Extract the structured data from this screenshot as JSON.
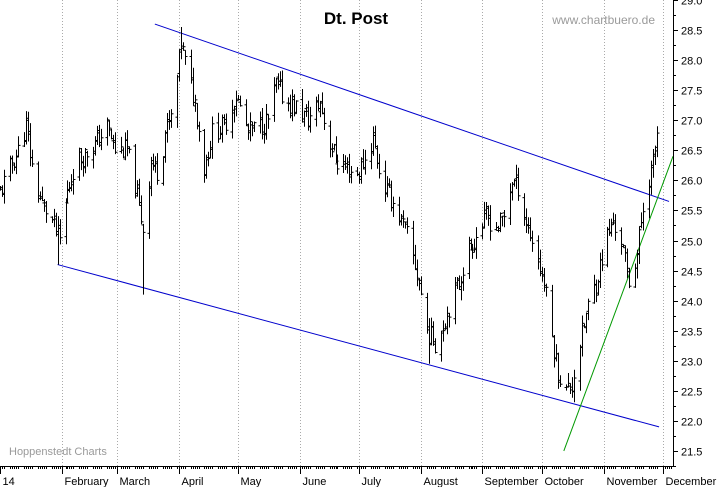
{
  "chart_data": {
    "type": "ohlc",
    "title": "Dt. Post",
    "watermark": "www.chartbuero.de",
    "source": "Hoppenstedt Charts",
    "xlabel": "",
    "ylabel": "",
    "y_axis": {
      "min": 21.25,
      "max": 29.0,
      "ticks": [
        21.5,
        22.0,
        22.5,
        23.0,
        23.5,
        24.0,
        24.5,
        25.0,
        25.5,
        26.0,
        26.5,
        27.0,
        27.5,
        28.0,
        28.5,
        29.0
      ],
      "tick_labels": [
        "21.5",
        "22.0",
        "22.5",
        "23.0",
        "23.5",
        "24.0",
        "24.5",
        "25.0",
        "25.5",
        "26.0",
        "26.5",
        "27.0",
        "27.5",
        "28.0",
        "28.5",
        "29.0"
      ],
      "side": "right"
    },
    "x_axis": {
      "start": "2014-01-01",
      "end": "2014-12-06",
      "month_starts": [
        "2014-02-01",
        "2014-03-01",
        "2014-04-01",
        "2014-05-01",
        "2014-06-01",
        "2014-07-01",
        "2014-08-01",
        "2014-09-01",
        "2014-10-01",
        "2014-11-01",
        "2014-12-01"
      ],
      "labels": [
        {
          "text": "14",
          "date": "2014-01-01"
        },
        {
          "text": "February",
          "date": "2014-02-01"
        },
        {
          "text": "March",
          "date": "2014-03-01"
        },
        {
          "text": "April",
          "date": "2014-04-01"
        },
        {
          "text": "May",
          "date": "2014-05-01"
        },
        {
          "text": "June",
          "date": "2014-06-01"
        },
        {
          "text": "July",
          "date": "2014-07-01"
        },
        {
          "text": "August",
          "date": "2014-08-01"
        },
        {
          "text": "September",
          "date": "2014-09-01"
        },
        {
          "text": "October",
          "date": "2014-10-01"
        },
        {
          "text": "November",
          "date": "2014-11-01"
        },
        {
          "text": "December",
          "date": "2014-12-01"
        }
      ]
    },
    "grid": "vertical dotted at month starts",
    "colors": {
      "price": "#000000",
      "channel": "#0000cc",
      "trendline": "#009900",
      "grid": "#aaaaaa",
      "axis": "#000000"
    },
    "price_anchors": [
      [
        "2014-01-01",
        25.8
      ],
      [
        "2014-01-06",
        26.2
      ],
      [
        "2014-01-10",
        26.5
      ],
      [
        "2014-01-14",
        26.9
      ],
      [
        "2014-01-18",
        26.0
      ],
      [
        "2014-01-22",
        25.6
      ],
      [
        "2014-01-26",
        25.4
      ],
      [
        "2014-01-31",
        25.0
      ],
      [
        "2014-02-04",
        25.8
      ],
      [
        "2014-02-08",
        26.3
      ],
      [
        "2014-02-12",
        26.4
      ],
      [
        "2014-02-18",
        26.6
      ],
      [
        "2014-02-24",
        26.9
      ],
      [
        "2014-02-28",
        26.5
      ],
      [
        "2014-03-06",
        26.5
      ],
      [
        "2014-03-10",
        25.9
      ],
      [
        "2014-03-14",
        25.2
      ],
      [
        "2014-03-18",
        26.3
      ],
      [
        "2014-03-22",
        26.1
      ],
      [
        "2014-03-25",
        26.8
      ],
      [
        "2014-03-29",
        27.1
      ],
      [
        "2014-04-02",
        28.3
      ],
      [
        "2014-04-05",
        27.8
      ],
      [
        "2014-04-09",
        27.3
      ],
      [
        "2014-04-14",
        26.2
      ],
      [
        "2014-04-18",
        26.8
      ],
      [
        "2014-04-24",
        26.9
      ],
      [
        "2014-04-30",
        27.4
      ],
      [
        "2014-05-06",
        26.8
      ],
      [
        "2014-05-12",
        26.9
      ],
      [
        "2014-05-16",
        27.0
      ],
      [
        "2014-05-20",
        27.6
      ],
      [
        "2014-05-25",
        27.3
      ],
      [
        "2014-05-31",
        27.2
      ],
      [
        "2014-06-05",
        27.0
      ],
      [
        "2014-06-11",
        27.3
      ],
      [
        "2014-06-15",
        26.7
      ],
      [
        "2014-06-20",
        26.3
      ],
      [
        "2014-06-25",
        26.2
      ],
      [
        "2014-06-30",
        26.1
      ],
      [
        "2014-07-05",
        26.4
      ],
      [
        "2014-07-08",
        26.7
      ],
      [
        "2014-07-12",
        26.0
      ],
      [
        "2014-07-17",
        25.7
      ],
      [
        "2014-07-21",
        25.4
      ],
      [
        "2014-07-26",
        25.0
      ],
      [
        "2014-07-31",
        24.3
      ],
      [
        "2014-08-04",
        23.5
      ],
      [
        "2014-08-08",
        23.3
      ],
      [
        "2014-08-12",
        23.6
      ],
      [
        "2014-08-16",
        24.0
      ],
      [
        "2014-08-20",
        24.3
      ],
      [
        "2014-08-24",
        24.8
      ],
      [
        "2014-08-28",
        25.0
      ],
      [
        "2014-09-03",
        25.4
      ],
      [
        "2014-09-08",
        25.2
      ],
      [
        "2014-09-12",
        25.4
      ],
      [
        "2014-09-16",
        26.0
      ],
      [
        "2014-09-19",
        25.9
      ],
      [
        "2014-09-23",
        25.3
      ],
      [
        "2014-09-28",
        24.8
      ],
      [
        "2014-10-02",
        24.3
      ],
      [
        "2014-10-06",
        23.4
      ],
      [
        "2014-10-09",
        22.8
      ],
      [
        "2014-10-13",
        22.5
      ],
      [
        "2014-10-16",
        22.6
      ],
      [
        "2014-10-20",
        23.3
      ],
      [
        "2014-10-24",
        23.9
      ],
      [
        "2014-10-28",
        24.3
      ],
      [
        "2014-11-02",
        25.0
      ],
      [
        "2014-11-06",
        25.3
      ],
      [
        "2014-11-10",
        25.0
      ],
      [
        "2014-11-14",
        24.3
      ],
      [
        "2014-11-18",
        24.8
      ],
      [
        "2014-11-22",
        25.8
      ],
      [
        "2014-11-26",
        26.3
      ],
      [
        "2014-11-28",
        26.8
      ]
    ],
    "extremes": [
      {
        "date": "2014-01-30",
        "low": 24.6
      },
      {
        "date": "2014-03-14",
        "low": 24.1
      },
      {
        "date": "2014-04-02",
        "high": 28.55
      },
      {
        "date": "2014-05-24",
        "high": 28.0
      },
      {
        "date": "2014-08-05",
        "low": 22.95
      },
      {
        "date": "2014-09-20",
        "high": 26.6
      },
      {
        "date": "2014-10-12",
        "low": 21.6
      },
      {
        "date": "2014-11-28",
        "high": 26.9
      }
    ],
    "channel_upper": [
      [
        "2014-03-20",
        28.6
      ],
      [
        "2014-12-04",
        25.65
      ]
    ],
    "channel_lower": [
      [
        "2014-01-30",
        24.6
      ],
      [
        "2014-11-29",
        21.9
      ]
    ],
    "support_line": [
      [
        "2014-10-12",
        21.5
      ],
      [
        "2014-12-06",
        26.4
      ]
    ]
  }
}
